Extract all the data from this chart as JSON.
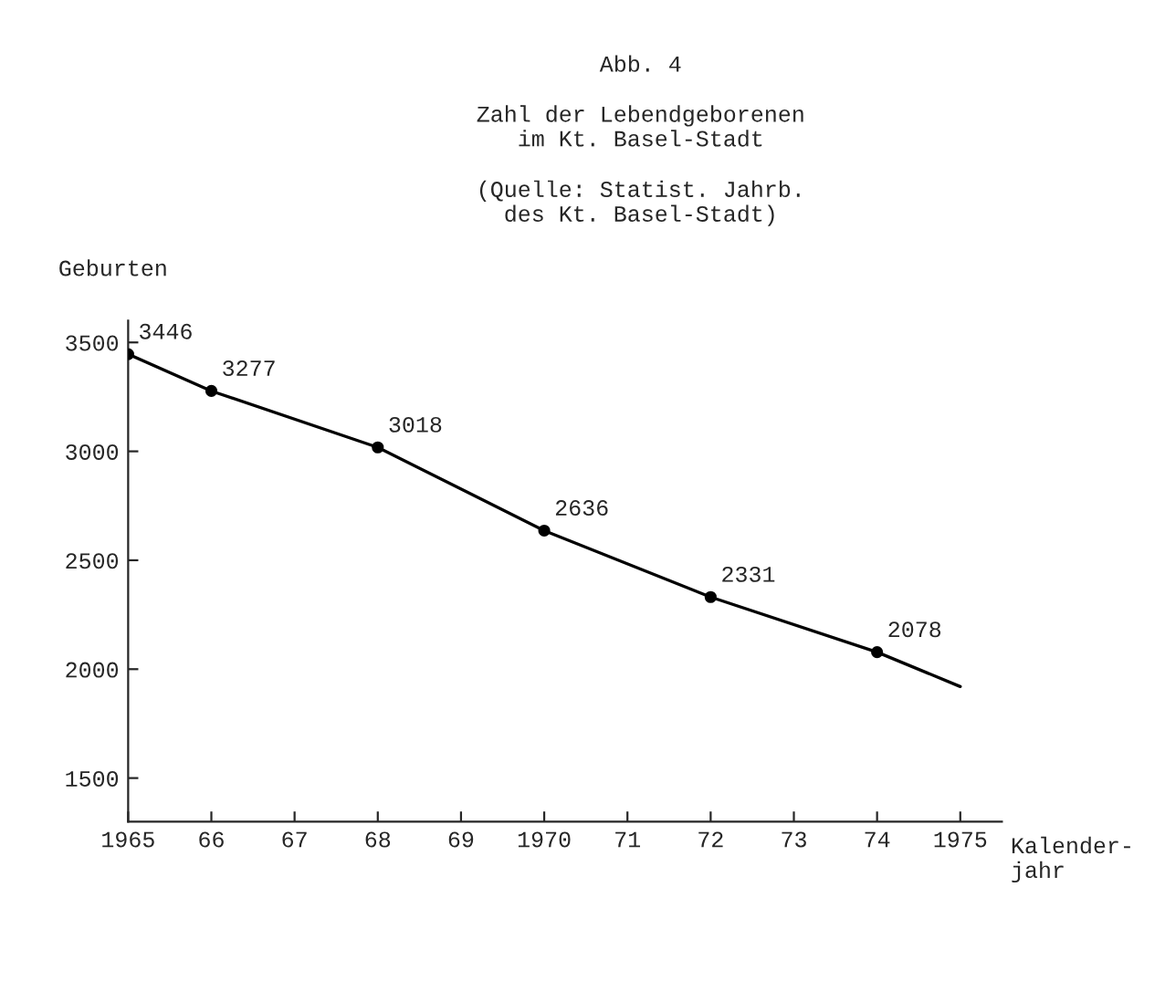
{
  "chart_data": {
    "type": "line",
    "title": "Abb. 4",
    "subtitle": "Zahl der Lebendgeborenen\nim Kt. Basel-Stadt",
    "annotations": [
      "(Quelle: Statist. Jahrb.\ndes Kt. Basel-Stadt)"
    ],
    "ylabel": "Geburten",
    "xlabel": "Kalender-\njahr",
    "series": [
      {
        "color": "#000000",
        "marker": "none",
        "x": [
          1965,
          1966,
          1968,
          1970,
          1972,
          1974,
          1975
        ],
        "values": [
          3446,
          3277,
          3018,
          2636,
          2331,
          2078,
          1920
        ]
      },
      {
        "type": "scatter",
        "color": "#000000",
        "marker": "circle",
        "x": [
          1965,
          1966,
          1968,
          1970,
          1972,
          1974
        ],
        "values": [
          3446,
          3277,
          3018,
          2636,
          2331,
          2078
        ],
        "data_labels": true
      }
    ],
    "xlim": [
      1965,
      1975.5
    ],
    "ylim": [
      1300,
      3600
    ],
    "xticks": [
      1965,
      {
        "value": 1966,
        "label": "66"
      },
      {
        "value": 1967,
        "label": "67"
      },
      {
        "value": 1968,
        "label": "68"
      },
      {
        "value": 1969,
        "label": "69"
      },
      1970,
      {
        "value": 1971,
        "label": "71"
      },
      {
        "value": 1972,
        "label": "72"
      },
      {
        "value": 1973,
        "label": "73"
      },
      {
        "value": 1974,
        "label": "74"
      },
      1975
    ],
    "yticks": [
      1500,
      2000,
      2500,
      3000,
      3500
    ],
    "grid": false,
    "legend": false
  }
}
